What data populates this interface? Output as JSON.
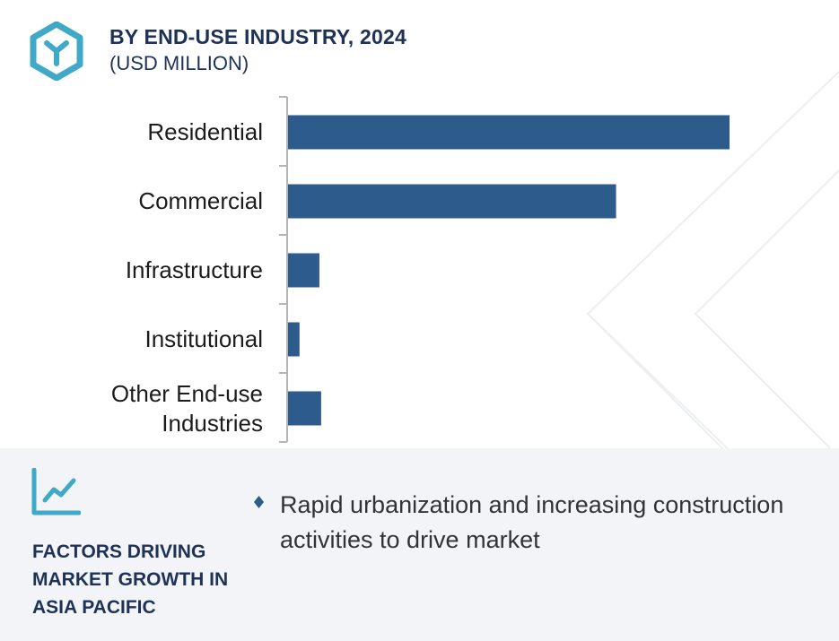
{
  "header": {
    "title": "BY END-USE INDUSTRY, 2024",
    "subtitle": "(USD MILLION)",
    "logo_icon": "hexagon-y-logo-icon",
    "accent_color": "#3fa9c7",
    "text_color": "#1e3156"
  },
  "chart_data": {
    "type": "bar",
    "orientation": "horizontal",
    "title": "BY END-USE INDUSTRY, 2024",
    "subtitle": "(USD MILLION)",
    "categories": [
      "Residential",
      "Commercial",
      "Infrastructure",
      "Institutional",
      "Other End-use Industries"
    ],
    "category_lines": [
      [
        "Residential"
      ],
      [
        "Commercial"
      ],
      [
        "Infrastructure"
      ],
      [
        "Institutional"
      ],
      [
        "Other End-use",
        "Industries"
      ]
    ],
    "values": [
      100,
      74.3,
      7.1,
      2.6,
      7.5
    ],
    "value_unit": "relative (no axis values printed)",
    "xlim": [
      0,
      100
    ],
    "grid": false,
    "legend": "none",
    "bar_color": "#2d5b8c"
  },
  "footer": {
    "icon": "trend-line-chart-icon",
    "heading_lines": [
      "FACTORS DRIVING",
      "MARKET GROWTH IN",
      "ASIA PACIFIC"
    ],
    "bullet_icon": "diamond-bullet-icon",
    "bullets": [
      "Rapid urbanization and increasing construction activities to drive market"
    ]
  }
}
